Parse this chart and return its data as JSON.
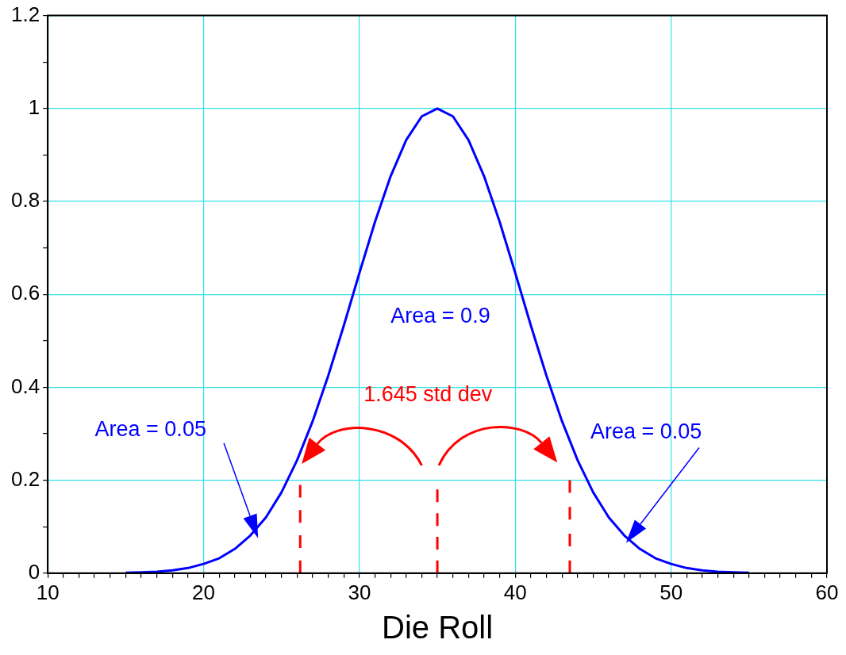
{
  "chart_data": {
    "type": "line",
    "xlabel": "Die Roll",
    "xlim": [
      10,
      60
    ],
    "xticks": [
      10,
      {
        "value": 11,
        "label": null
      },
      {
        "value": 12,
        "label": null
      },
      {
        "value": 13,
        "label": null
      },
      {
        "value": 14,
        "label": null
      },
      {
        "value": 15,
        "label": null
      },
      {
        "value": 16,
        "label": null
      },
      {
        "value": 17,
        "label": null
      },
      {
        "value": 18,
        "label": null
      },
      {
        "value": 19,
        "label": null
      },
      20,
      {
        "value": 21,
        "label": null
      },
      {
        "value": 22,
        "label": null
      },
      {
        "value": 23,
        "label": null
      },
      {
        "value": 24,
        "label": null
      },
      {
        "value": 25,
        "label": null
      },
      {
        "value": 26,
        "label": null
      },
      {
        "value": 27,
        "label": null
      },
      {
        "value": 28,
        "label": null
      },
      {
        "value": 29,
        "label": null
      },
      30,
      {
        "value": 31,
        "label": null
      },
      {
        "value": 32,
        "label": null
      },
      {
        "value": 33,
        "label": null
      },
      {
        "value": 34,
        "label": null
      },
      {
        "value": 35,
        "label": null
      },
      {
        "value": 36,
        "label": null
      },
      {
        "value": 37,
        "label": null
      },
      {
        "value": 38,
        "label": null
      },
      {
        "value": 39,
        "label": null
      },
      40,
      {
        "value": 41,
        "label": null
      },
      {
        "value": 42,
        "label": null
      },
      {
        "value": 43,
        "label": null
      },
      {
        "value": 44,
        "label": null
      },
      {
        "value": 45,
        "label": null
      },
      {
        "value": 46,
        "label": null
      },
      {
        "value": 47,
        "label": null
      },
      {
        "value": 48,
        "label": null
      },
      {
        "value": 49,
        "label": null
      },
      50,
      {
        "value": 51,
        "label": null
      },
      {
        "value": 52,
        "label": null
      },
      {
        "value": 53,
        "label": null
      },
      {
        "value": 54,
        "label": null
      },
      {
        "value": 55,
        "label": null
      },
      {
        "value": 56,
        "label": null
      },
      {
        "value": 57,
        "label": null
      },
      {
        "value": 58,
        "label": null
      },
      {
        "value": 59,
        "label": null
      },
      60
    ],
    "ylim": [
      0,
      1.2
    ],
    "yticks": [
      0,
      {
        "value": 0.1,
        "label": null
      },
      0.2,
      {
        "value": 0.3,
        "label": null
      },
      0.4,
      {
        "value": 0.5,
        "label": null
      },
      0.6,
      {
        "value": 0.7,
        "label": null
      },
      0.8,
      {
        "value": 0.9,
        "label": null
      },
      1,
      {
        "value": 1.1,
        "label": null
      },
      1.2
    ],
    "grid": true,
    "legend": false,
    "marker": "none",
    "series": [
      {
        "color": "#0000ff",
        "line_style": "solid",
        "x": [
          15,
          16,
          17,
          18,
          19,
          20,
          21,
          22,
          23,
          24,
          25,
          26,
          27,
          28,
          29,
          30,
          31,
          32,
          33,
          34,
          35,
          36,
          37,
          38,
          39,
          40,
          41,
          42,
          43,
          44,
          45,
          46,
          47,
          48,
          49,
          50,
          51,
          52,
          53,
          54,
          55
        ],
        "values": [
          0.001,
          0.002,
          0.003,
          0.006,
          0.011,
          0.02,
          0.032,
          0.052,
          0.081,
          0.12,
          0.174,
          0.243,
          0.327,
          0.425,
          0.533,
          0.646,
          0.756,
          0.854,
          0.932,
          0.983,
          1,
          0.983,
          0.932,
          0.854,
          0.756,
          0.646,
          0.533,
          0.425,
          0.327,
          0.243,
          0.174,
          0.12,
          0.081,
          0.052,
          0.032,
          0.02,
          0.011,
          0.006,
          0.003,
          0.002,
          0.001
        ]
      },
      {
        "color": "#ff0000",
        "line_style": "dashed",
        "x": [
          26.2,
          26.2
        ],
        "values": [
          0,
          0.19
        ]
      },
      {
        "color": "#ff0000",
        "line_style": "dashed",
        "x": [
          35,
          35
        ],
        "values": [
          0,
          0.18
        ]
      },
      {
        "color": "#ff0000",
        "line_style": "dashed",
        "x": [
          43.5,
          43.5
        ],
        "values": [
          0,
          0.2
        ]
      }
    ],
    "annotations": [
      "Area = 0.9",
      "Area = 0.05",
      "Area = 0.05",
      "1.645 std dev"
    ]
  }
}
